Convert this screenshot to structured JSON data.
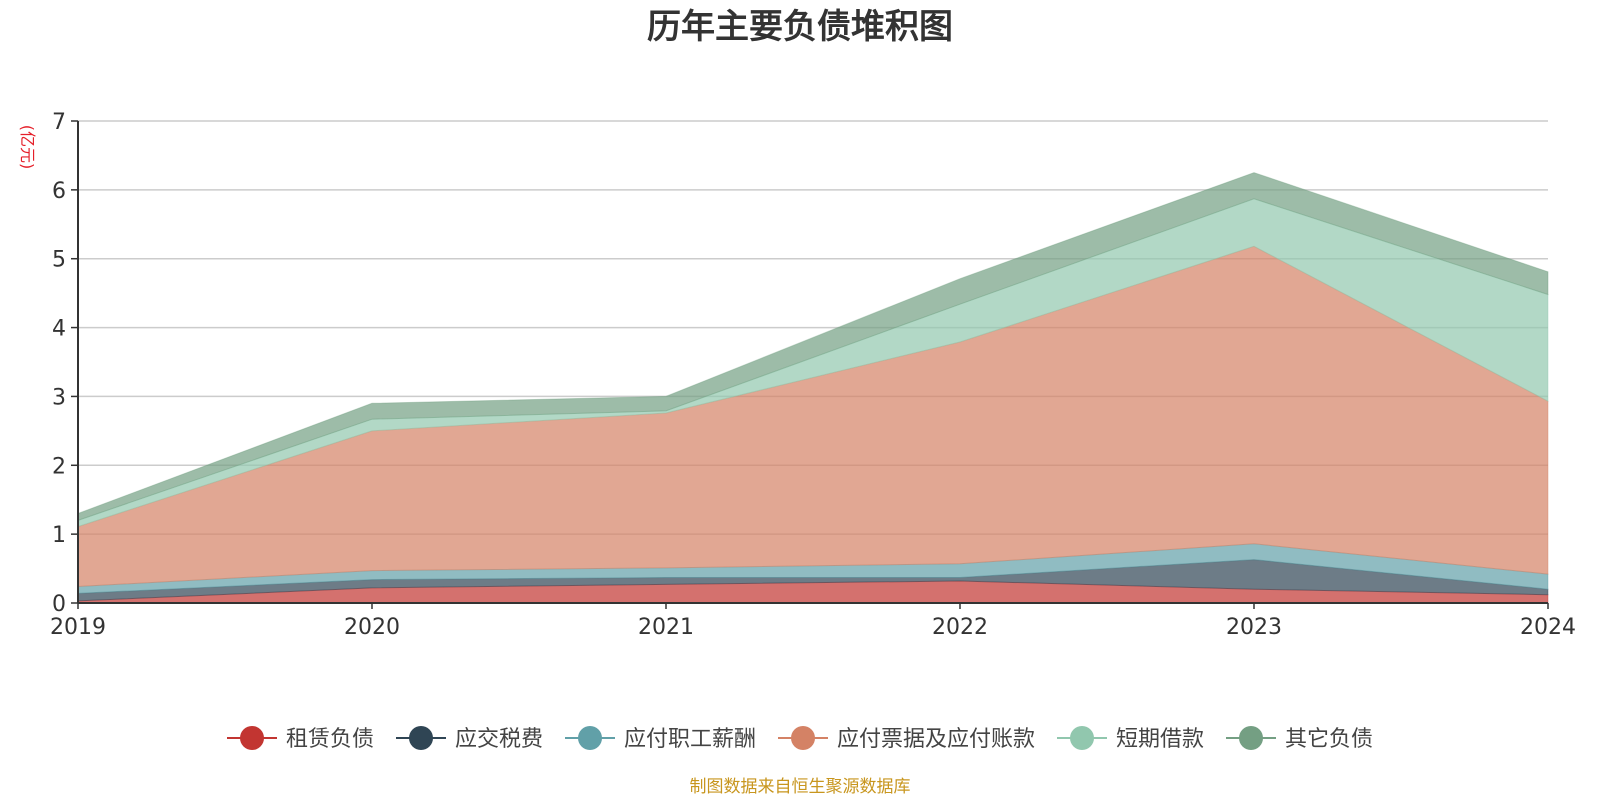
{
  "chart_data": {
    "type": "area",
    "stacked": true,
    "title": "历年主要负债堆积图",
    "ylabel": "(亿元)",
    "xlabel": "",
    "categories": [
      "2019",
      "2020",
      "2021",
      "2022",
      "2023",
      "2024"
    ],
    "ylim": [
      0,
      7
    ],
    "yticks": [
      0,
      1,
      2,
      3,
      4,
      5,
      6,
      7
    ],
    "grid": true,
    "legend_position": "bottom",
    "series": [
      {
        "name": "租赁负债",
        "color": "#c23531",
        "values": [
          0.03,
          0.22,
          0.27,
          0.32,
          0.2,
          0.12
        ]
      },
      {
        "name": "应交税费",
        "color": "#2f4554",
        "values": [
          0.11,
          0.12,
          0.1,
          0.05,
          0.43,
          0.08
        ]
      },
      {
        "name": "应付职工薪酬",
        "color": "#61a0a8",
        "values": [
          0.1,
          0.13,
          0.14,
          0.2,
          0.23,
          0.22
        ]
      },
      {
        "name": "应付票据及应付账款",
        "color": "#d48265",
        "values": [
          0.87,
          2.03,
          2.25,
          3.22,
          4.32,
          2.51
        ]
      },
      {
        "name": "短期借款",
        "color": "#91c7ae",
        "values": [
          0.09,
          0.17,
          0.03,
          0.55,
          0.69,
          1.55
        ]
      },
      {
        "name": "其它负债",
        "color": "#749f83",
        "values": [
          0.1,
          0.23,
          0.21,
          0.37,
          0.38,
          0.33
        ]
      }
    ],
    "source": "制图数据来自恒生聚源数据库"
  }
}
